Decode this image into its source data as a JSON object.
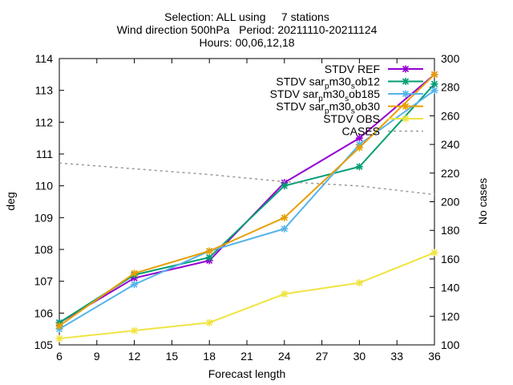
{
  "chart_data": {
    "type": "line",
    "title_lines": [
      "Selection: ALL using     7 stations",
      "Wind direction 500hPa   Period: 20211110-20211124",
      "Hours: 00,06,12,18"
    ],
    "xlabel": "Forecast length",
    "ylabel": "deg",
    "y2label": "No cases",
    "x_ticks": [
      6,
      9,
      12,
      15,
      18,
      21,
      24,
      27,
      30,
      33,
      36
    ],
    "y_ticks": [
      105,
      106,
      107,
      108,
      109,
      110,
      111,
      112,
      113,
      114
    ],
    "y2_ticks": [
      100,
      120,
      140,
      160,
      180,
      200,
      220,
      240,
      260,
      280,
      300
    ],
    "xlim": [
      6,
      36
    ],
    "ylim": [
      105,
      114
    ],
    "y2lim": [
      100,
      300
    ],
    "grid": false,
    "legend_position": "top-right",
    "x": [
      6,
      12,
      18,
      24,
      30,
      36
    ],
    "series": [
      {
        "name": "STDV REF",
        "color": "#9400d3",
        "axis": "y",
        "marker": "x",
        "values": [
          105.7,
          107.1,
          107.65,
          110.1,
          111.5,
          113.5
        ]
      },
      {
        "name": "STDV sar_p m30_s ob12",
        "legend_parts": [
          "STDV sar",
          "p",
          "m30",
          "s",
          "ob12"
        ],
        "color": "#009e73",
        "axis": "y",
        "marker": "x",
        "values": [
          105.7,
          107.2,
          107.75,
          110.0,
          110.6,
          113.2
        ]
      },
      {
        "name": "STDV sar_p m30_s ob185",
        "legend_parts": [
          "STDV sar",
          "p",
          "m30",
          "s",
          "ob185"
        ],
        "color": "#56b4e9",
        "axis": "y",
        "marker": "x",
        "values": [
          105.5,
          106.9,
          107.95,
          108.65,
          111.3,
          113.0
        ]
      },
      {
        "name": "STDV sar_p m30_s ob30",
        "legend_parts": [
          "STDV sar",
          "p",
          "m30",
          "s",
          "ob30"
        ],
        "color": "#e69f00",
        "axis": "y",
        "marker": "x",
        "values": [
          105.6,
          107.25,
          107.95,
          109.0,
          111.2,
          113.5
        ]
      },
      {
        "name": "STDV OBS",
        "color": "#f0e442",
        "axis": "y",
        "marker": "x",
        "values": [
          105.2,
          105.45,
          105.7,
          106.6,
          106.95,
          107.9
        ]
      },
      {
        "name": "CASES",
        "color": "#999999",
        "axis": "y2",
        "dashed": true,
        "marker": "none",
        "values": [
          227,
          223,
          219,
          214,
          211,
          205
        ]
      }
    ]
  }
}
